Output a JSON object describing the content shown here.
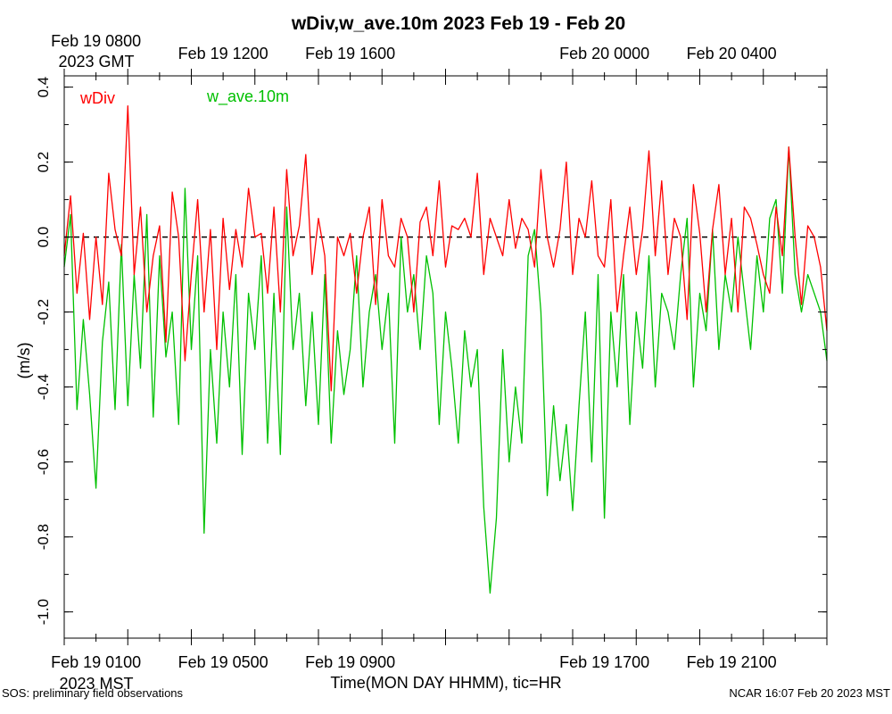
{
  "chart_data": {
    "type": "line",
    "title": "wDiv,w_ave.10m 2023 Feb 19 - Feb 20",
    "xlabel": "Time(MON DAY HHMM), tic=HR",
    "ylabel": "(m/s)",
    "ylim": [
      -1.07,
      0.43
    ],
    "yticks": [
      0.4,
      0.2,
      0.0,
      -0.2,
      -0.4,
      -0.6,
      -0.8,
      -1.0
    ],
    "ytick_labels": [
      "0.4",
      "0.2",
      "0.0",
      "-0.2",
      "-0.4",
      "-0.6",
      "-0.8",
      "-1.0"
    ],
    "xlim_hours_mst": [
      0,
      24
    ],
    "xticks_hours_mst": [
      0,
      1,
      2,
      3,
      4,
      5,
      6,
      7,
      8,
      9,
      10,
      11,
      12,
      13,
      14,
      15,
      16,
      17,
      18,
      19,
      20,
      21,
      22,
      23,
      24
    ],
    "bottom_labels": [
      {
        "hour": 1,
        "text": "Feb 19 0100"
      },
      {
        "hour": 5,
        "text": "Feb 19 0500"
      },
      {
        "hour": 9,
        "text": "Feb 19 0900"
      },
      {
        "hour": 17,
        "text": "Feb 19 1700"
      },
      {
        "hour": 21,
        "text": "Feb 19 2100"
      }
    ],
    "bottom_zone_label": "2023 MST",
    "top_labels": [
      {
        "hour": 1,
        "text": "Feb 19 0800"
      },
      {
        "hour": 5,
        "text": "Feb 19 1200"
      },
      {
        "hour": 9,
        "text": "Feb 19 1600"
      },
      {
        "hour": 17,
        "text": "Feb 20 0000"
      },
      {
        "hour": 21,
        "text": "Feb 20 0400"
      }
    ],
    "top_zone_label": "2023 GMT",
    "reference_line": {
      "y": 0.0,
      "style": "dashed",
      "color": "#000000"
    },
    "legend": "top-left",
    "series": [
      {
        "name": "wDiv",
        "color": "#ff0000",
        "x": [
          0,
          0.2,
          0.4,
          0.6,
          0.8,
          1.0,
          1.2,
          1.4,
          1.6,
          1.8,
          2.0,
          2.2,
          2.4,
          2.6,
          2.8,
          3.0,
          3.2,
          3.4,
          3.6,
          3.8,
          4.0,
          4.2,
          4.4,
          4.6,
          4.8,
          5.0,
          5.2,
          5.4,
          5.6,
          5.8,
          6.0,
          6.2,
          6.4,
          6.6,
          6.8,
          7.0,
          7.2,
          7.4,
          7.6,
          7.8,
          8.0,
          8.2,
          8.4,
          8.6,
          8.8,
          9.0,
          9.2,
          9.4,
          9.6,
          9.8,
          10.0,
          10.2,
          10.4,
          10.6,
          10.8,
          11.0,
          11.2,
          11.4,
          11.6,
          11.8,
          12.0,
          12.2,
          12.4,
          12.6,
          12.8,
          13.0,
          13.2,
          13.4,
          13.6,
          13.8,
          14.0,
          14.2,
          14.4,
          14.6,
          14.8,
          15.0,
          15.2,
          15.4,
          15.6,
          15.8,
          16.0,
          16.2,
          16.4,
          16.6,
          16.8,
          17.0,
          17.2,
          17.4,
          17.6,
          17.8,
          18.0,
          18.2,
          18.4,
          18.6,
          18.8,
          19.0,
          19.2,
          19.4,
          19.6,
          19.8,
          20.0,
          20.2,
          20.4,
          20.6,
          20.8,
          21.0,
          21.2,
          21.4,
          21.6,
          21.8,
          22.0,
          22.2,
          22.4,
          22.6,
          22.8,
          23.0,
          23.2,
          23.4,
          23.6,
          23.8,
          24.0
        ],
        "values": [
          -0.05,
          0.11,
          -0.15,
          0.01,
          -0.22,
          0.0,
          -0.18,
          0.17,
          0.02,
          -0.05,
          0.35,
          -0.1,
          0.08,
          -0.2,
          -0.05,
          0.03,
          -0.28,
          0.12,
          0.0,
          -0.33,
          -0.1,
          0.1,
          -0.2,
          0.02,
          -0.3,
          0.05,
          -0.14,
          0.02,
          -0.08,
          0.13,
          0.0,
          0.01,
          -0.15,
          0.08,
          -0.2,
          0.18,
          -0.05,
          0.03,
          0.22,
          -0.1,
          0.05,
          -0.05,
          -0.41,
          0.0,
          -0.05,
          0.01,
          -0.15,
          0.0,
          0.08,
          -0.18,
          0.1,
          -0.05,
          -0.08,
          0.05,
          0.0,
          -0.2,
          0.04,
          0.08,
          -0.05,
          0.15,
          -0.08,
          0.03,
          0.02,
          0.05,
          0.0,
          0.17,
          -0.1,
          0.05,
          0.0,
          -0.05,
          0.1,
          -0.03,
          0.05,
          0.02,
          -0.08,
          0.18,
          0.0,
          -0.08,
          0.02,
          0.2,
          -0.1,
          0.05,
          0.0,
          0.15,
          -0.05,
          -0.08,
          0.1,
          -0.2,
          -0.05,
          0.08,
          -0.1,
          0.02,
          0.23,
          -0.05,
          0.15,
          -0.1,
          0.05,
          0.0,
          -0.22,
          0.14,
          0.01,
          -0.2,
          0.02,
          0.14,
          -0.1,
          0.05,
          -0.2,
          0.08,
          0.05,
          -0.02,
          -0.1,
          -0.15,
          0.08,
          -0.05,
          0.24,
          0.0,
          -0.18,
          0.03,
          0.0,
          -0.08,
          -0.25
        ]
      },
      {
        "name": "w_ave.10m",
        "color": "#00c000",
        "x": [
          0,
          0.2,
          0.4,
          0.6,
          0.8,
          1.0,
          1.2,
          1.4,
          1.6,
          1.8,
          2.0,
          2.2,
          2.4,
          2.6,
          2.8,
          3.0,
          3.2,
          3.4,
          3.6,
          3.8,
          4.0,
          4.2,
          4.4,
          4.6,
          4.8,
          5.0,
          5.2,
          5.4,
          5.6,
          5.8,
          6.0,
          6.2,
          6.4,
          6.6,
          6.8,
          7.0,
          7.2,
          7.4,
          7.6,
          7.8,
          8.0,
          8.2,
          8.4,
          8.6,
          8.8,
          9.0,
          9.2,
          9.4,
          9.6,
          9.8,
          10.0,
          10.2,
          10.4,
          10.6,
          10.8,
          11.0,
          11.2,
          11.4,
          11.6,
          11.8,
          12.0,
          12.2,
          12.4,
          12.6,
          12.8,
          13.0,
          13.2,
          13.4,
          13.6,
          13.8,
          14.0,
          14.2,
          14.4,
          14.6,
          14.8,
          15.0,
          15.2,
          15.4,
          15.6,
          15.8,
          16.0,
          16.2,
          16.4,
          16.6,
          16.8,
          17.0,
          17.2,
          17.4,
          17.6,
          17.8,
          18.0,
          18.2,
          18.4,
          18.6,
          18.8,
          19.0,
          19.2,
          19.4,
          19.6,
          19.8,
          20.0,
          20.2,
          20.4,
          20.6,
          20.8,
          21.0,
          21.2,
          21.4,
          21.6,
          21.8,
          22.0,
          22.2,
          22.4,
          22.6,
          22.8,
          23.0,
          23.2,
          23.4,
          23.6,
          23.8,
          24.0
        ],
        "values": [
          -0.08,
          0.06,
          -0.46,
          -0.22,
          -0.42,
          -0.67,
          -0.28,
          -0.12,
          -0.46,
          -0.02,
          -0.45,
          -0.1,
          -0.35,
          0.06,
          -0.48,
          -0.05,
          -0.32,
          -0.2,
          -0.5,
          0.13,
          -0.3,
          -0.05,
          -0.79,
          -0.3,
          -0.55,
          -0.2,
          -0.4,
          -0.1,
          -0.58,
          -0.15,
          -0.3,
          -0.05,
          -0.55,
          -0.15,
          -0.58,
          0.08,
          -0.3,
          -0.15,
          -0.45,
          -0.2,
          -0.5,
          -0.1,
          -0.55,
          -0.25,
          -0.42,
          -0.3,
          -0.05,
          -0.4,
          -0.2,
          -0.1,
          -0.3,
          -0.15,
          -0.55,
          0.0,
          -0.2,
          -0.1,
          -0.3,
          -0.05,
          -0.15,
          -0.5,
          -0.2,
          -0.35,
          -0.55,
          -0.25,
          -0.4,
          -0.3,
          -0.72,
          -0.95,
          -0.75,
          -0.3,
          -0.6,
          -0.4,
          -0.55,
          -0.05,
          0.02,
          -0.2,
          -0.69,
          -0.45,
          -0.65,
          -0.5,
          -0.73,
          -0.45,
          -0.2,
          -0.6,
          -0.1,
          -0.75,
          -0.2,
          -0.4,
          -0.1,
          -0.5,
          -0.2,
          -0.35,
          -0.05,
          -0.4,
          -0.15,
          -0.2,
          -0.3,
          -0.1,
          0.05,
          -0.4,
          -0.15,
          -0.25,
          0.02,
          -0.3,
          -0.1,
          -0.2,
          0.0,
          -0.15,
          -0.3,
          -0.05,
          -0.2,
          0.05,
          0.1,
          -0.15,
          0.24,
          -0.1,
          -0.2,
          -0.1,
          -0.15,
          -0.2,
          -0.33
        ]
      }
    ]
  },
  "footer": {
    "left": "SOS: preliminary field observations",
    "right": "NCAR 16:07 Feb 20 2023 MST"
  }
}
